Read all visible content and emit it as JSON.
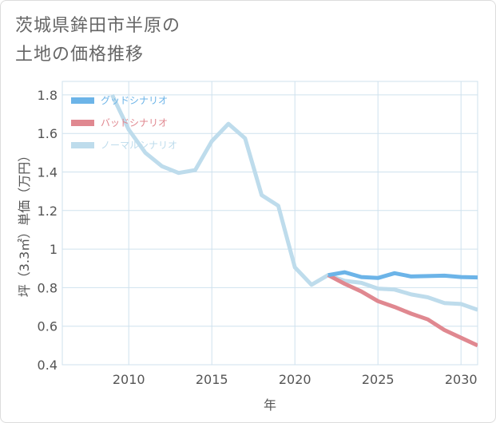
{
  "page": {
    "title_line1": "茨城県鉾田市半原の",
    "title_line2": "土地の価格推移"
  },
  "colors": {
    "good": "#6cb4e8",
    "bad": "#e08890",
    "normal": "#bedcec",
    "grid": "#cfe2ee",
    "text": "#555555"
  },
  "chart_data": {
    "type": "line",
    "xlabel": "年",
    "ylabel": "坪（3.3㎡）単価（万円）",
    "xlim": [
      2006,
      2031
    ],
    "ylim": [
      0.4,
      1.87
    ],
    "x_ticks": [
      {
        "value": 2010,
        "label": "2010"
      },
      {
        "value": 2015,
        "label": "2015"
      },
      {
        "value": 2020,
        "label": "2020"
      },
      {
        "value": 2025,
        "label": "2025"
      },
      {
        "value": 2030,
        "label": "2030"
      }
    ],
    "y_ticks": [
      {
        "value": 0.4,
        "label": "0.4"
      },
      {
        "value": 0.6,
        "label": "0.6"
      },
      {
        "value": 0.8,
        "label": "0.8"
      },
      {
        "value": 1.0,
        "label": "1"
      },
      {
        "value": 1.2,
        "label": "1.2"
      },
      {
        "value": 1.4,
        "label": "1.4"
      },
      {
        "value": 1.6,
        "label": "1.6"
      },
      {
        "value": 1.8,
        "label": "1.8"
      }
    ],
    "grid": true,
    "legend_position": "top-left",
    "series": [
      {
        "name": "グッドシナリオ",
        "color": "#6cb4e8",
        "points": [
          [
            2022,
            0.865
          ],
          [
            2023,
            0.88
          ],
          [
            2024,
            0.855
          ],
          [
            2025,
            0.85
          ],
          [
            2026,
            0.875
          ],
          [
            2027,
            0.858
          ],
          [
            2028,
            0.86
          ],
          [
            2029,
            0.862
          ],
          [
            2030,
            0.855
          ],
          [
            2031,
            0.853
          ]
        ]
      },
      {
        "name": "バッドシナリオ",
        "color": "#e08890",
        "points": [
          [
            2022,
            0.865
          ],
          [
            2023,
            0.82
          ],
          [
            2024,
            0.78
          ],
          [
            2025,
            0.73
          ],
          [
            2026,
            0.7
          ],
          [
            2027,
            0.665
          ],
          [
            2028,
            0.635
          ],
          [
            2029,
            0.58
          ],
          [
            2030,
            0.54
          ],
          [
            2031,
            0.5
          ]
        ]
      },
      {
        "name": "ノーマルシナリオ",
        "color": "#bedcec",
        "points": [
          [
            2009,
            1.8
          ],
          [
            2010,
            1.62
          ],
          [
            2011,
            1.5
          ],
          [
            2012,
            1.43
          ],
          [
            2013,
            1.395
          ],
          [
            2014,
            1.41
          ],
          [
            2015,
            1.56
          ],
          [
            2016,
            1.65
          ],
          [
            2017,
            1.575
          ],
          [
            2018,
            1.28
          ],
          [
            2019,
            1.225
          ],
          [
            2020,
            0.905
          ],
          [
            2021,
            0.815
          ],
          [
            2022,
            0.865
          ],
          [
            2023,
            0.835
          ],
          [
            2024,
            0.825
          ],
          [
            2025,
            0.795
          ],
          [
            2026,
            0.79
          ],
          [
            2027,
            0.765
          ],
          [
            2028,
            0.75
          ],
          [
            2029,
            0.72
          ],
          [
            2030,
            0.715
          ],
          [
            2031,
            0.685
          ]
        ]
      }
    ]
  }
}
